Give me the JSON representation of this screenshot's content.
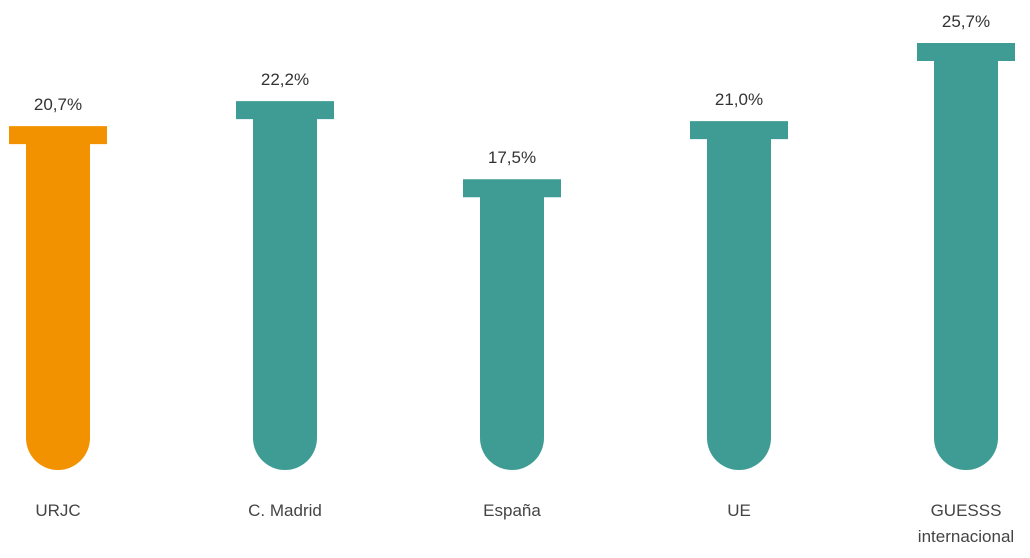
{
  "chart_data": {
    "type": "bar",
    "categories": [
      "URJC",
      "C. Madrid",
      "España",
      "UE",
      "GUESSS internacional"
    ],
    "values": [
      20.7,
      22.2,
      17.5,
      21.0,
      25.7
    ],
    "value_labels": [
      "20,7%",
      "22,2%",
      "17,5%",
      "21,0%",
      "25,7%"
    ],
    "colors": [
      "#f39200",
      "#3f9c94",
      "#3f9c94",
      "#3f9c94",
      "#3f9c94"
    ]
  }
}
